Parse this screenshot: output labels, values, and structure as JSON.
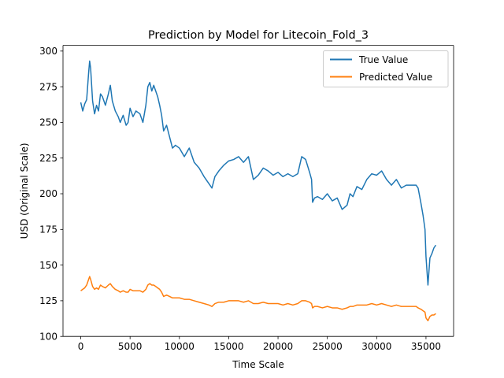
{
  "chart_data": {
    "type": "line",
    "title": "Prediction by Model for Litecoin_Fold_3",
    "xlabel": "Time Scale",
    "ylabel": "USD (Original Scale)",
    "xlim": [
      -1800,
      37800
    ],
    "ylim": [
      100,
      304
    ],
    "xticks": [
      0,
      5000,
      10000,
      15000,
      20000,
      25000,
      30000,
      35000
    ],
    "xtick_labels": [
      "0",
      "5000",
      "10000",
      "15000",
      "20000",
      "25000",
      "30000",
      "35000"
    ],
    "yticks": [
      100,
      125,
      150,
      175,
      200,
      225,
      250,
      275,
      300
    ],
    "ytick_labels": [
      "100",
      "125",
      "150",
      "175",
      "200",
      "225",
      "250",
      "275",
      "300"
    ],
    "grid": false,
    "legend_position": "top-right",
    "series": [
      {
        "name": "True Value",
        "color": "#1f77b4",
        "x": [
          0,
          200,
          400,
          600,
          800,
          900,
          1000,
          1200,
          1400,
          1600,
          1800,
          2000,
          2200,
          2500,
          2800,
          3000,
          3200,
          3500,
          3800,
          4000,
          4300,
          4600,
          4800,
          5000,
          5300,
          5600,
          6000,
          6300,
          6600,
          6800,
          7000,
          7200,
          7400,
          7600,
          7800,
          8000,
          8200,
          8400,
          8700,
          9000,
          9300,
          9600,
          10000,
          10500,
          11000,
          11500,
          12000,
          12500,
          13000,
          13300,
          13600,
          14000,
          14500,
          15000,
          15500,
          16000,
          16500,
          17000,
          17500,
          18000,
          18500,
          19000,
          19500,
          20000,
          20500,
          21000,
          21500,
          22000,
          22400,
          22800,
          23200,
          23400,
          23500,
          23700,
          24000,
          24500,
          25000,
          25500,
          26000,
          26500,
          27000,
          27300,
          27600,
          28000,
          28500,
          29000,
          29500,
          30000,
          30500,
          31000,
          31500,
          32000,
          32500,
          33000,
          33500,
          34000,
          34200,
          34500,
          34700,
          34900,
          35000,
          35200,
          35400,
          35600,
          35800,
          36000
        ],
        "values": [
          264,
          258,
          263,
          266,
          285,
          293,
          288,
          265,
          256,
          262,
          258,
          270,
          268,
          262,
          270,
          276,
          265,
          258,
          254,
          250,
          255,
          248,
          250,
          260,
          254,
          258,
          256,
          250,
          262,
          275,
          278,
          272,
          276,
          272,
          268,
          262,
          255,
          244,
          248,
          240,
          232,
          234,
          232,
          226,
          232,
          222,
          218,
          212,
          207,
          204,
          212,
          216,
          220,
          223,
          224,
          226,
          222,
          226,
          210,
          213,
          218,
          216,
          213,
          215,
          212,
          214,
          212,
          214,
          226,
          224,
          215,
          210,
          194,
          197,
          198,
          196,
          200,
          195,
          197,
          189,
          192,
          200,
          198,
          205,
          203,
          210,
          214,
          213,
          216,
          210,
          206,
          210,
          204,
          206,
          206,
          206,
          204,
          193,
          185,
          175,
          156,
          136,
          155,
          158,
          162,
          164
        ]
      },
      {
        "name": "Predicted Value",
        "color": "#ff7f0e",
        "x": [
          0,
          200,
          400,
          600,
          800,
          900,
          1000,
          1200,
          1400,
          1600,
          1800,
          2000,
          2200,
          2500,
          2800,
          3000,
          3200,
          3500,
          3800,
          4000,
          4300,
          4600,
          4800,
          5000,
          5300,
          5600,
          6000,
          6300,
          6600,
          6800,
          7000,
          7200,
          7400,
          7600,
          7800,
          8000,
          8200,
          8400,
          8700,
          9000,
          9300,
          9600,
          10000,
          10500,
          11000,
          11500,
          12000,
          12500,
          13000,
          13300,
          13600,
          14000,
          14500,
          15000,
          15500,
          16000,
          16500,
          17000,
          17500,
          18000,
          18500,
          19000,
          19500,
          20000,
          20500,
          21000,
          21500,
          22000,
          22400,
          22800,
          23200,
          23400,
          23500,
          23700,
          24000,
          24500,
          25000,
          25500,
          26000,
          26500,
          27000,
          27300,
          27600,
          28000,
          28500,
          29000,
          29500,
          30000,
          30500,
          31000,
          31500,
          32000,
          32500,
          33000,
          33500,
          34000,
          34200,
          34500,
          34700,
          34900,
          35000,
          35200,
          35400,
          35600,
          35800,
          36000
        ],
        "values": [
          132,
          133,
          134,
          136,
          140,
          142,
          140,
          135,
          133,
          134,
          133,
          136,
          135,
          134,
          136,
          137,
          135,
          133,
          132,
          131,
          132,
          131,
          131,
          133,
          132,
          132,
          132,
          131,
          133,
          136,
          137,
          136,
          136,
          135,
          134,
          133,
          131,
          128,
          129,
          128,
          127,
          127,
          127,
          126,
          126,
          125,
          124,
          123,
          122,
          121,
          123,
          124,
          124,
          125,
          125,
          125,
          124,
          125,
          123,
          123,
          124,
          123,
          123,
          123,
          122,
          123,
          122,
          123,
          125,
          125,
          124,
          123,
          120,
          121,
          121,
          120,
          121,
          120,
          120,
          119,
          120,
          121,
          121,
          122,
          122,
          122,
          123,
          122,
          123,
          122,
          121,
          122,
          121,
          121,
          121,
          121,
          120,
          119,
          118,
          117,
          113,
          111,
          114,
          115,
          115,
          116
        ]
      }
    ]
  }
}
